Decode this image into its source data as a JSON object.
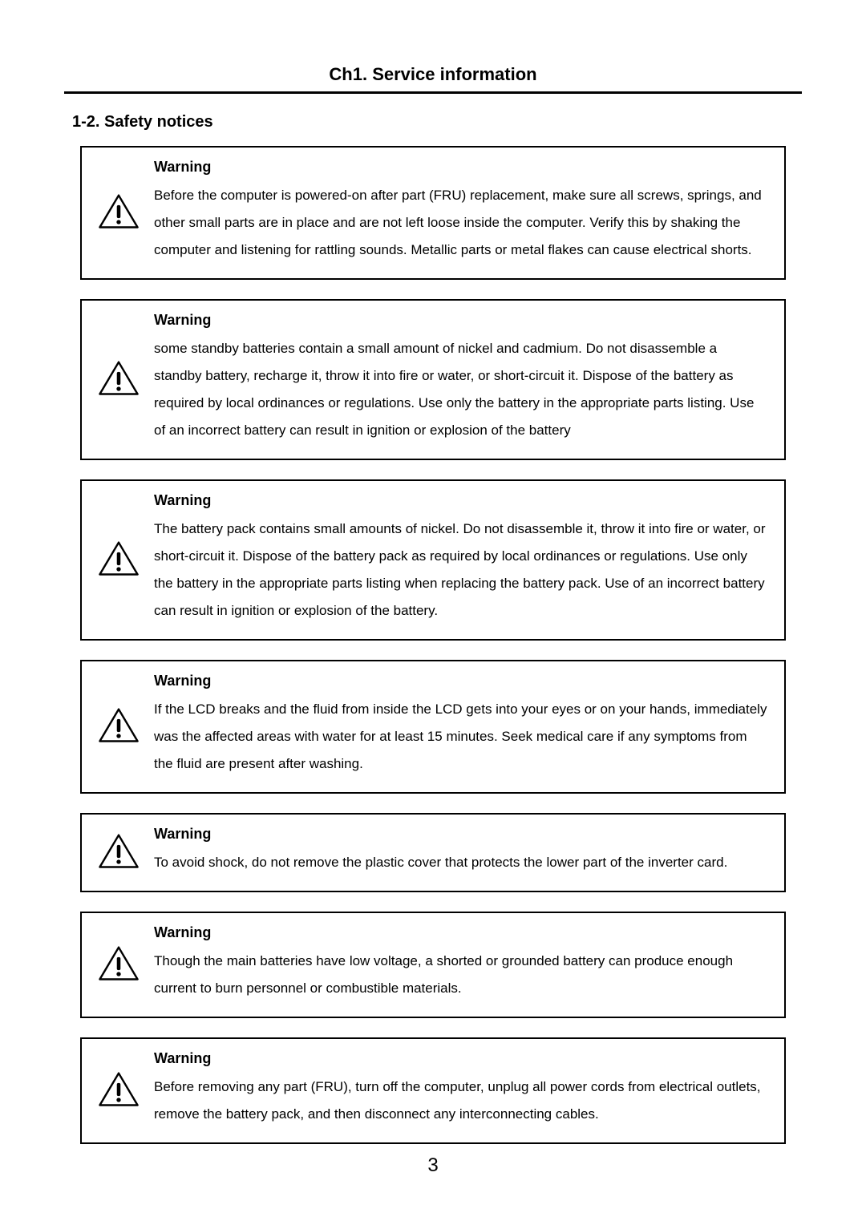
{
  "chapter_title": "Ch1. Service information",
  "section_title": "1-2. Safety notices",
  "warning_label": "Warning",
  "warnings": [
    {
      "text": "Before the computer is powered-on after part (FRU) replacement, make sure all screws, springs, and other small parts are in place and are not left loose inside the computer. Verify this by shaking the computer and listening for rattling sounds. Metallic parts or metal flakes can cause electrical shorts."
    },
    {
      "text": "some standby batteries contain a small amount of nickel and cadmium. Do not disassemble a standby battery, recharge it, throw it into fire or water, or short-circuit it. Dispose of the battery as required by local ordinances or regulations. Use only the battery in the appropriate parts listing. Use of an  incorrect battery can result in ignition or explosion of the battery"
    },
    {
      "text": "The battery pack contains small amounts of nickel. Do not disassemble it, throw  it into fire or water, or short-circuit it. Dispose of the battery pack as required by local ordinances or regulations. Use only the battery in the appropriate parts listing when replacing the battery pack. Use of an incorrect battery can result in ignition or explosion of the battery."
    },
    {
      "text": "If the LCD breaks and the fluid from inside the  LCD gets into your eyes or on your hands, immediately was the affected areas with water for at least 15 minutes. Seek medical care if any symptoms from the fluid are present after washing."
    },
    {
      "text": "To avoid shock, do not remove the plastic cover that protects the lower part of the inverter card."
    },
    {
      "text": "Though the main batteries have low voltage, a shorted or grounded battery can produce enough current to burn personnel or combustible materials."
    },
    {
      "text": "Before removing any part (FRU), turn off the computer, unplug all power cords from electrical outlets, remove the battery pack, and then disconnect any interconnecting cables."
    }
  ],
  "page_number": "3",
  "colors": {
    "text": "#000000",
    "background": "#ffffff",
    "border": "#000000"
  },
  "typography": {
    "font_family": "Arial, Helvetica, sans-serif",
    "chapter_title_size": 22,
    "section_title_size": 20,
    "warning_label_size": 18,
    "body_size": 17,
    "page_number_size": 24
  }
}
